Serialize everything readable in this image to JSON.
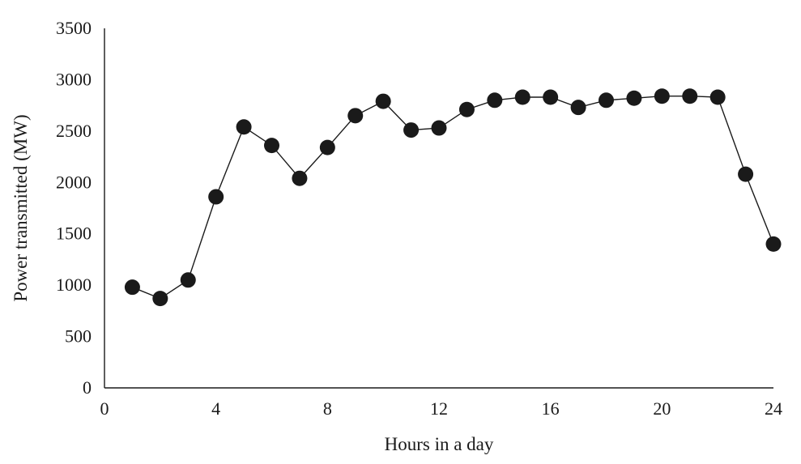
{
  "chart_data": {
    "type": "line",
    "title": "",
    "xlabel": "Hours in a day",
    "ylabel": "Power transmitted (MW)",
    "xlim": [
      0,
      24
    ],
    "ylim": [
      0,
      3500
    ],
    "x_ticks": [
      "0",
      "4",
      "8",
      "12",
      "16",
      "20",
      "24"
    ],
    "y_ticks": [
      "0",
      "500",
      "1000",
      "1500",
      "2000",
      "2500",
      "3000",
      "3500"
    ],
    "grid": false,
    "legend": "none",
    "marker": "filled-circle",
    "color": "#1a1a1a",
    "series": [
      {
        "x": [
          1,
          2,
          3,
          4,
          5,
          6,
          7,
          8,
          9,
          10,
          11,
          12,
          13,
          14,
          15,
          16,
          17,
          18,
          19,
          20,
          21,
          22,
          23,
          24
        ],
        "values": [
          980,
          870,
          1050,
          1860,
          2540,
          2360,
          2040,
          2340,
          2650,
          2790,
          2510,
          2530,
          2710,
          2800,
          2830,
          2830,
          2730,
          2800,
          2820,
          2840,
          2840,
          2830,
          2080,
          1400
        ]
      }
    ]
  }
}
